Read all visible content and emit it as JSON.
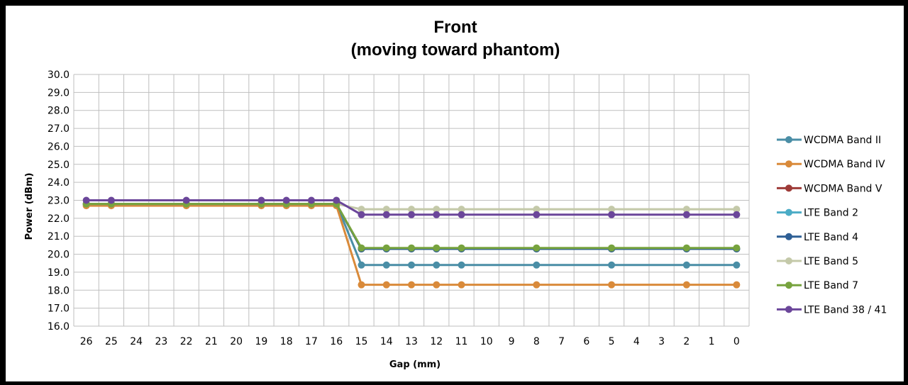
{
  "chart_data": {
    "type": "line",
    "title": "Front",
    "subtitle": "(moving toward phantom)",
    "xlabel": "Gap (mm)",
    "ylabel": "Power (dBm)",
    "ylim": [
      16.0,
      30.0
    ],
    "y_ticks": [
      "30.0",
      "29.0",
      "28.0",
      "27.0",
      "26.0",
      "25.0",
      "24.0",
      "23.0",
      "22.0",
      "21.0",
      "20.0",
      "19.0",
      "18.0",
      "17.0",
      "16.0"
    ],
    "x": [
      "26",
      "25",
      "24",
      "23",
      "22",
      "21",
      "20",
      "19",
      "18",
      "17",
      "16",
      "15",
      "14",
      "13",
      "12",
      "11",
      "10",
      "9",
      "8",
      "7",
      "6",
      "5",
      "4",
      "3",
      "2",
      "1",
      "0"
    ],
    "marker_x": [
      "26",
      "25",
      "22",
      "19",
      "18",
      "17",
      "16",
      "15",
      "14",
      "13",
      "12",
      "11",
      "8",
      "5",
      "2",
      "0"
    ],
    "grid": true,
    "legend_position": "right",
    "series": [
      {
        "name": "WCDMA Band II",
        "color": "#4A8EA6",
        "before": 22.8,
        "after": 19.4
      },
      {
        "name": "WCDMA Band IV",
        "color": "#D98A3A",
        "before": 22.7,
        "after": 18.3
      },
      {
        "name": "WCDMA Band V",
        "color": "#9E3B38",
        "before": 22.8,
        "after": 20.3
      },
      {
        "name": "LTE Band 2",
        "color": "#4BACC6",
        "before": 22.8,
        "after": 20.3
      },
      {
        "name": "LTE Band 4",
        "color": "#2E5F95",
        "before": 22.8,
        "after": 20.3
      },
      {
        "name": "LTE Band 5",
        "color": "#C4C9A9",
        "before": 22.8,
        "after": 22.5
      },
      {
        "name": "LTE Band 7",
        "color": "#77A33E",
        "before": 22.8,
        "after": 20.35
      },
      {
        "name": "LTE Band 38 / 41",
        "color": "#6B469A",
        "before": 23.0,
        "after": 22.2
      }
    ]
  }
}
